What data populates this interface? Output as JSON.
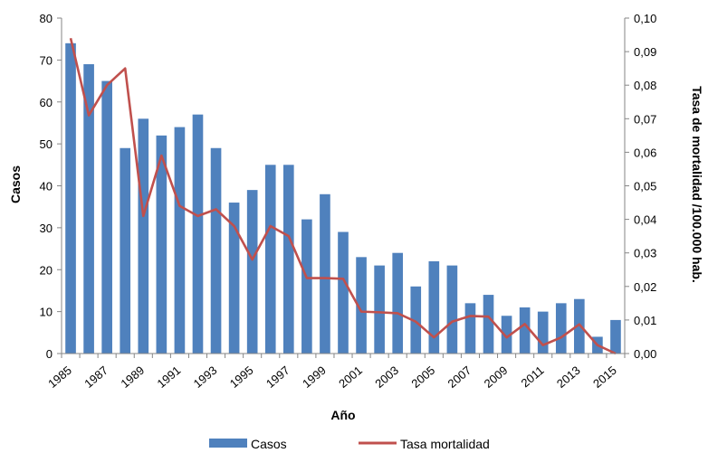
{
  "chart_data": {
    "type": "bar",
    "x": [
      1985,
      1986,
      1987,
      1988,
      1989,
      1990,
      1991,
      1992,
      1993,
      1994,
      1995,
      1996,
      1997,
      1998,
      1999,
      2000,
      2001,
      2002,
      2003,
      2004,
      2005,
      2006,
      2007,
      2008,
      2009,
      2010,
      2011,
      2012,
      2013,
      2014,
      2015
    ],
    "x_tick_labels": [
      "1985",
      "1987",
      "1989",
      "1991",
      "1993",
      "1995",
      "1997",
      "1999",
      "2001",
      "2003",
      "2005",
      "2007",
      "2009",
      "2011",
      "2013",
      "2015"
    ],
    "series": [
      {
        "name": "Casos",
        "type": "bar",
        "axis": "left",
        "color": "#4F81BD",
        "values": [
          74,
          69,
          65,
          49,
          56,
          52,
          54,
          57,
          49,
          36,
          39,
          45,
          45,
          32,
          38,
          29,
          23,
          21,
          24,
          16,
          22,
          21,
          12,
          14,
          9,
          11,
          10,
          12,
          13,
          4,
          8
        ]
      },
      {
        "name": "Tasa mortalidad",
        "type": "line",
        "axis": "right",
        "color": "#C0504D",
        "values": [
          0.094,
          0.071,
          0.08,
          0.085,
          0.041,
          0.059,
          0.044,
          0.041,
          0.043,
          0.038,
          0.028,
          0.038,
          0.035,
          0.0225,
          0.0225,
          0.0223,
          0.0125,
          0.0123,
          0.012,
          0.0095,
          0.0048,
          0.0095,
          0.0112,
          0.011,
          0.0048,
          0.0088,
          0.0025,
          0.0048,
          0.0087,
          0.0025,
          0.0
        ]
      }
    ],
    "xlabel": "Año",
    "ylabel": "Casos",
    "y2label": "Tasa de mortalidad /100.000 hab.",
    "ylim": [
      0,
      80
    ],
    "y_ticks": [
      "0",
      "10",
      "20",
      "30",
      "40",
      "50",
      "60",
      "70",
      "80"
    ],
    "y2lim": [
      0,
      0.1
    ],
    "y2_ticks": [
      "0,00",
      "0,01",
      "0,02",
      "0,03",
      "0,04",
      "0,05",
      "0,06",
      "0,07",
      "0,08",
      "0,09",
      "0,10"
    ],
    "grid": false,
    "legend": {
      "position": "bottom",
      "items": [
        "Casos",
        "Tasa mortalidad"
      ]
    }
  }
}
